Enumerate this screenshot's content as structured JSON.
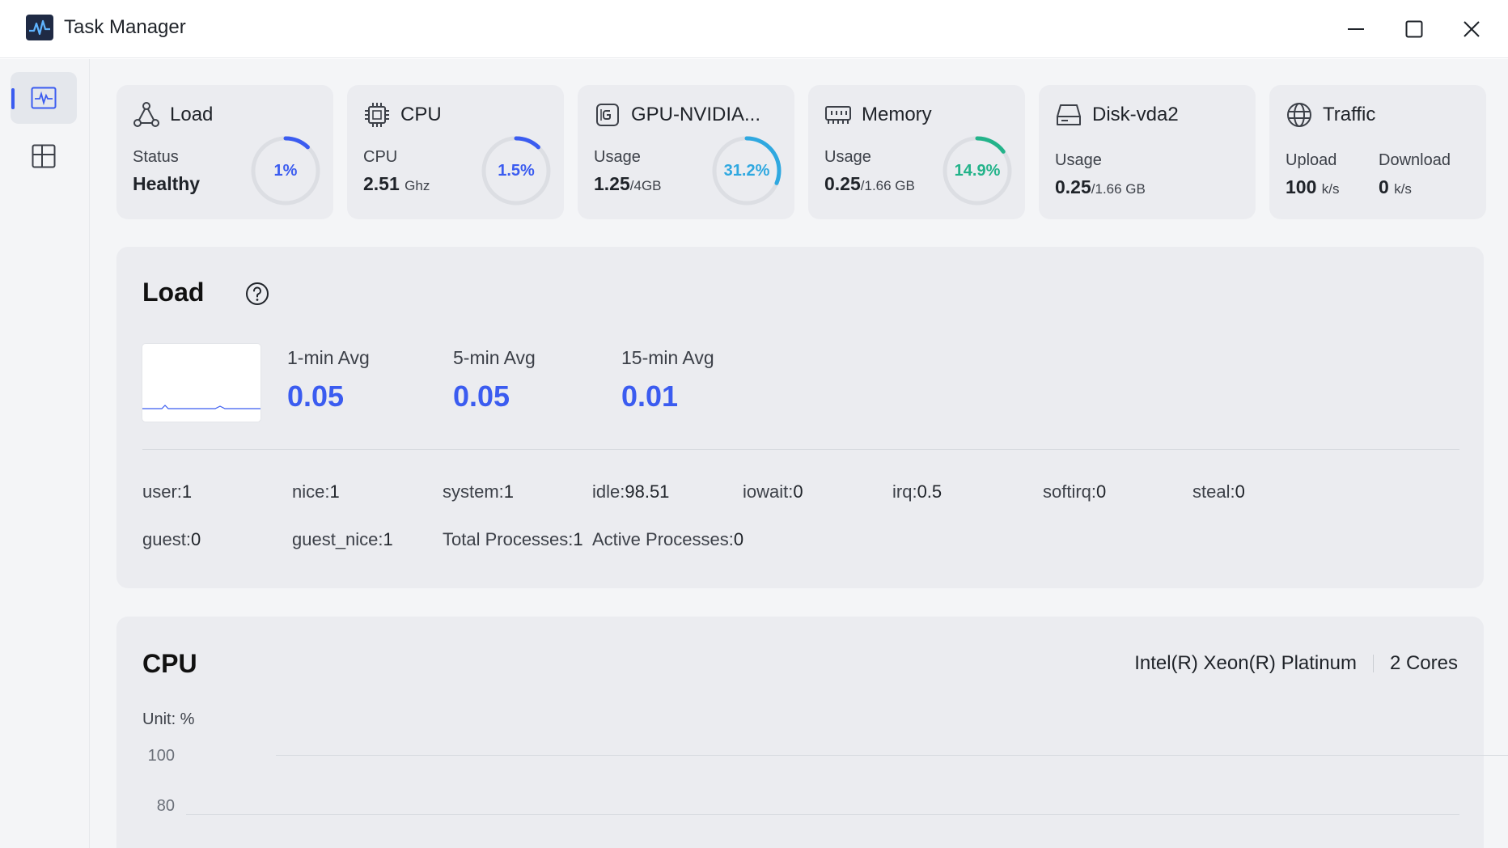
{
  "window": {
    "title": "Task Manager"
  },
  "cards": [
    {
      "title": "Load",
      "label": "Status",
      "value": "Healthy",
      "gauge_percent": 1,
      "gauge_text": "1%",
      "gauge_color": "#3b5cf0"
    },
    {
      "title": "CPU",
      "label": "CPU",
      "value": "2.51",
      "unit": "Ghz",
      "gauge_percent": 1.5,
      "gauge_text": "1.5%",
      "gauge_color": "#3b5cf0"
    },
    {
      "title": "GPU-NVIDIA...",
      "label": "Usage",
      "value": "1.25",
      "unit": "/4GB",
      "gauge_percent": 31.2,
      "gauge_text": "31.2%",
      "gauge_color": "#2fa8e0"
    },
    {
      "title": "Memory",
      "label": "Usage",
      "value": "0.25",
      "unit": "/1.66 GB",
      "gauge_percent": 14.9,
      "gauge_text": "14.9%",
      "gauge_color": "#23b38a"
    },
    {
      "title": "Disk-vda2",
      "label": "Usage",
      "value": "0.25",
      "unit": "/1.66 GB"
    },
    {
      "title": "Traffic",
      "upload_label": "Upload",
      "upload_value": "100",
      "upload_unit": "k/s",
      "download_label": "Download",
      "download_value": "0",
      "download_unit": "k/s"
    }
  ],
  "load_panel": {
    "title": "Load",
    "averages": [
      {
        "label": "1-min Avg",
        "value": "0.05"
      },
      {
        "label": "5-min Avg",
        "value": "0.05"
      },
      {
        "label": "15-min Avg",
        "value": "0.01"
      }
    ],
    "stats": [
      {
        "key": "user:",
        "value": "1"
      },
      {
        "key": "nice:",
        "value": "1"
      },
      {
        "key": "system:",
        "value": "1"
      },
      {
        "key": "idle:",
        "value": "98.51"
      },
      {
        "key": "iowait:",
        "value": "0"
      },
      {
        "key": "irq:",
        "value": "0.5"
      },
      {
        "key": "softirq:",
        "value": "0"
      },
      {
        "key": "steal:",
        "value": "0"
      },
      {
        "key": "guest:",
        "value": "0"
      },
      {
        "key": "guest_nice:",
        "value": "1"
      },
      {
        "key": "Total Processes:",
        "value": "1"
      },
      {
        "key": "Active Processes:",
        "value": "0"
      }
    ]
  },
  "cpu_panel": {
    "title": "CPU",
    "model": "Intel(R) Xeon(R) Platinum",
    "cores": "2 Cores",
    "unit_label": "Unit: %",
    "y_ticks": [
      "100",
      "80"
    ]
  },
  "colors": {
    "accent": "#3b5cf0",
    "gpu": "#2fa8e0",
    "memory": "#23b38a"
  }
}
